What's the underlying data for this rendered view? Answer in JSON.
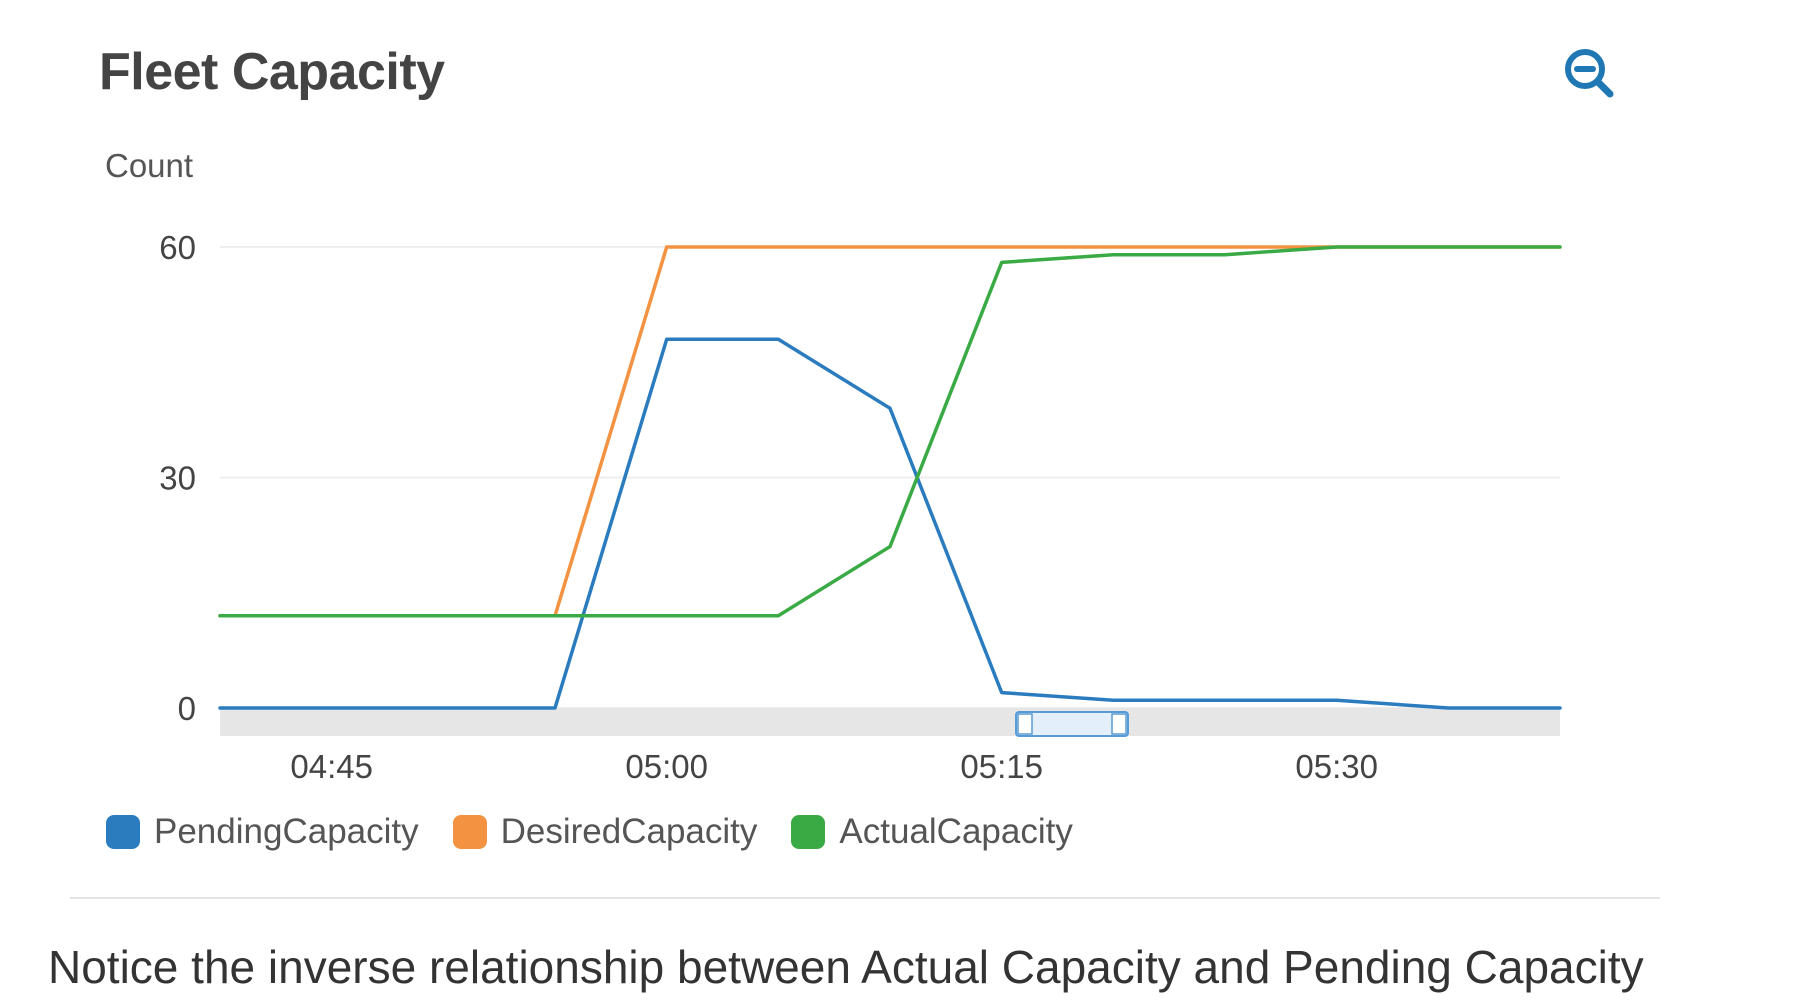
{
  "panel": {
    "title": "Fleet Capacity",
    "zoom_icon": "zoom-out-icon"
  },
  "caption": "Notice the inverse relationship between Actual Capacity and Pending Capacity",
  "colors": {
    "pending": "#2b7bbf",
    "desired": "#f39240",
    "actual": "#3aaa45",
    "grid": "#eeeeee",
    "accent": "#1f77b4"
  },
  "chart_data": {
    "type": "line",
    "title": "Fleet Capacity",
    "xlabel": "",
    "ylabel": "Count",
    "x": [
      "04:40",
      "04:45",
      "04:50",
      "04:55",
      "05:00",
      "05:05",
      "05:10",
      "05:15",
      "05:20",
      "05:25",
      "05:30",
      "05:35",
      "05:40"
    ],
    "x_ticks": [
      "04:45",
      "05:00",
      "05:15",
      "05:30"
    ],
    "y_ticks": [
      0,
      30,
      60
    ],
    "ylim": [
      0,
      60
    ],
    "grid": true,
    "legend_position": "bottom-left",
    "series": [
      {
        "name": "PendingCapacity",
        "color": "#2b7bbf",
        "values": [
          0,
          0,
          0,
          0,
          48,
          48,
          39,
          2,
          1,
          1,
          1,
          0,
          0
        ]
      },
      {
        "name": "DesiredCapacity",
        "color": "#f39240",
        "values": [
          12,
          12,
          12,
          12,
          60,
          60,
          60,
          60,
          60,
          60,
          60,
          60,
          60
        ]
      },
      {
        "name": "ActualCapacity",
        "color": "#3aaa45",
        "values": [
          12,
          12,
          12,
          12,
          12,
          12,
          21,
          58,
          59,
          59,
          60,
          60,
          60
        ]
      }
    ]
  }
}
